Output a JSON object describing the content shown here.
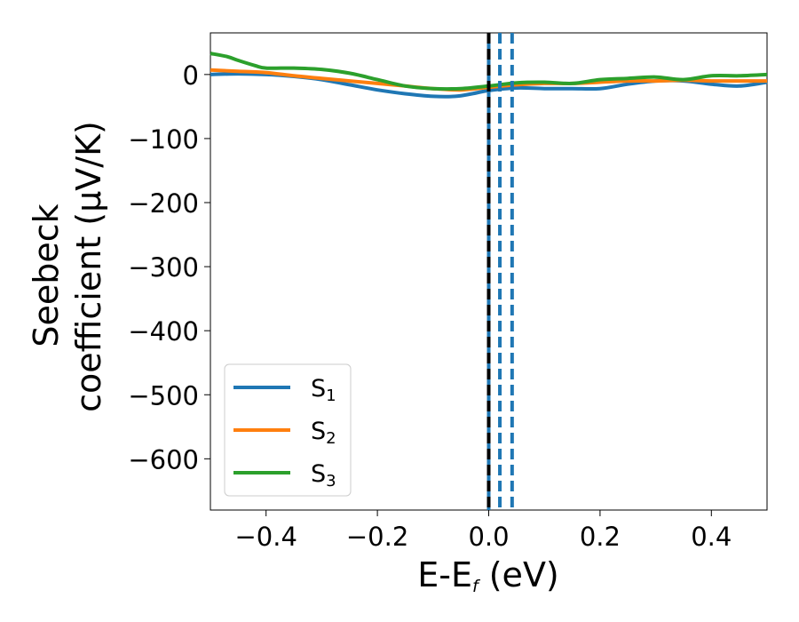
{
  "chart_data": {
    "type": "line",
    "title": "",
    "xlabel": {
      "main": "E-E",
      "sub": "f",
      "rest": " (eV)"
    },
    "ylabel": {
      "line1": "Seebeck",
      "line2": "coefficient  (μV/K)"
    },
    "xlim": [
      -0.5,
      0.5
    ],
    "ylim": [
      -680,
      65
    ],
    "xticks": [
      -0.4,
      -0.2,
      0.0,
      0.2,
      0.4
    ],
    "xtick_labels": [
      "−0.4",
      "−0.2",
      "0.0",
      "0.2",
      "0.4"
    ],
    "yticks": [
      0,
      -100,
      -200,
      -300,
      -400,
      -500,
      -600
    ],
    "ytick_labels": [
      "0",
      "−100",
      "−200",
      "−300",
      "−400",
      "−500",
      "−600"
    ],
    "grid": false,
    "legend": {
      "position": "lower-left",
      "entries": [
        {
          "main": "S",
          "sub": "1"
        },
        {
          "main": "S",
          "sub": "2"
        },
        {
          "main": "S",
          "sub": "3"
        }
      ]
    },
    "vlines": [
      {
        "x": 0.0,
        "color": "#000000",
        "style": "dashed-on-solid",
        "overlay": "#1f77b4"
      },
      {
        "x": 0.02,
        "color": "#1f77b4",
        "style": "dashed"
      },
      {
        "x": 0.042,
        "color": "#1f77b4",
        "style": "dashed"
      }
    ],
    "series": [
      {
        "name": "S1",
        "color": "#1f77b4",
        "x": [
          -0.5,
          -0.45,
          -0.4,
          -0.35,
          -0.3,
          -0.25,
          -0.2,
          -0.15,
          -0.1,
          -0.06,
          -0.03,
          0.0,
          0.05,
          0.1,
          0.15,
          0.2,
          0.25,
          0.3,
          0.35,
          0.4,
          0.45,
          0.5
        ],
        "y": [
          0,
          1,
          0,
          -3,
          -8,
          -16,
          -24,
          -30,
          -34,
          -34,
          -30,
          -25,
          -21,
          -22,
          -22,
          -22,
          -15,
          -10,
          -10,
          -15,
          -18,
          -12
        ]
      },
      {
        "name": "S2",
        "color": "#ff7f0e",
        "x": [
          -0.5,
          -0.45,
          -0.4,
          -0.35,
          -0.3,
          -0.25,
          -0.2,
          -0.15,
          -0.1,
          -0.05,
          0.0,
          0.05,
          0.1,
          0.15,
          0.2,
          0.25,
          0.3,
          0.35,
          0.4,
          0.45,
          0.5
        ],
        "y": [
          7,
          5,
          3,
          -2,
          -6,
          -10,
          -14,
          -18,
          -22,
          -24,
          -20,
          -16,
          -14,
          -14,
          -12,
          -10,
          -10,
          -9,
          -10,
          -10,
          -10
        ]
      },
      {
        "name": "S3",
        "color": "#2ca02c",
        "x": [
          -0.5,
          -0.47,
          -0.45,
          -0.42,
          -0.4,
          -0.35,
          -0.3,
          -0.25,
          -0.2,
          -0.15,
          -0.1,
          -0.05,
          0.0,
          0.05,
          0.1,
          0.15,
          0.2,
          0.25,
          0.3,
          0.35,
          0.4,
          0.45,
          0.5
        ],
        "y": [
          33,
          28,
          22,
          14,
          10,
          10,
          8,
          2,
          -8,
          -18,
          -22,
          -22,
          -18,
          -13,
          -12,
          -14,
          -8,
          -6,
          -4,
          -8,
          -2,
          -2,
          0
        ]
      }
    ]
  }
}
